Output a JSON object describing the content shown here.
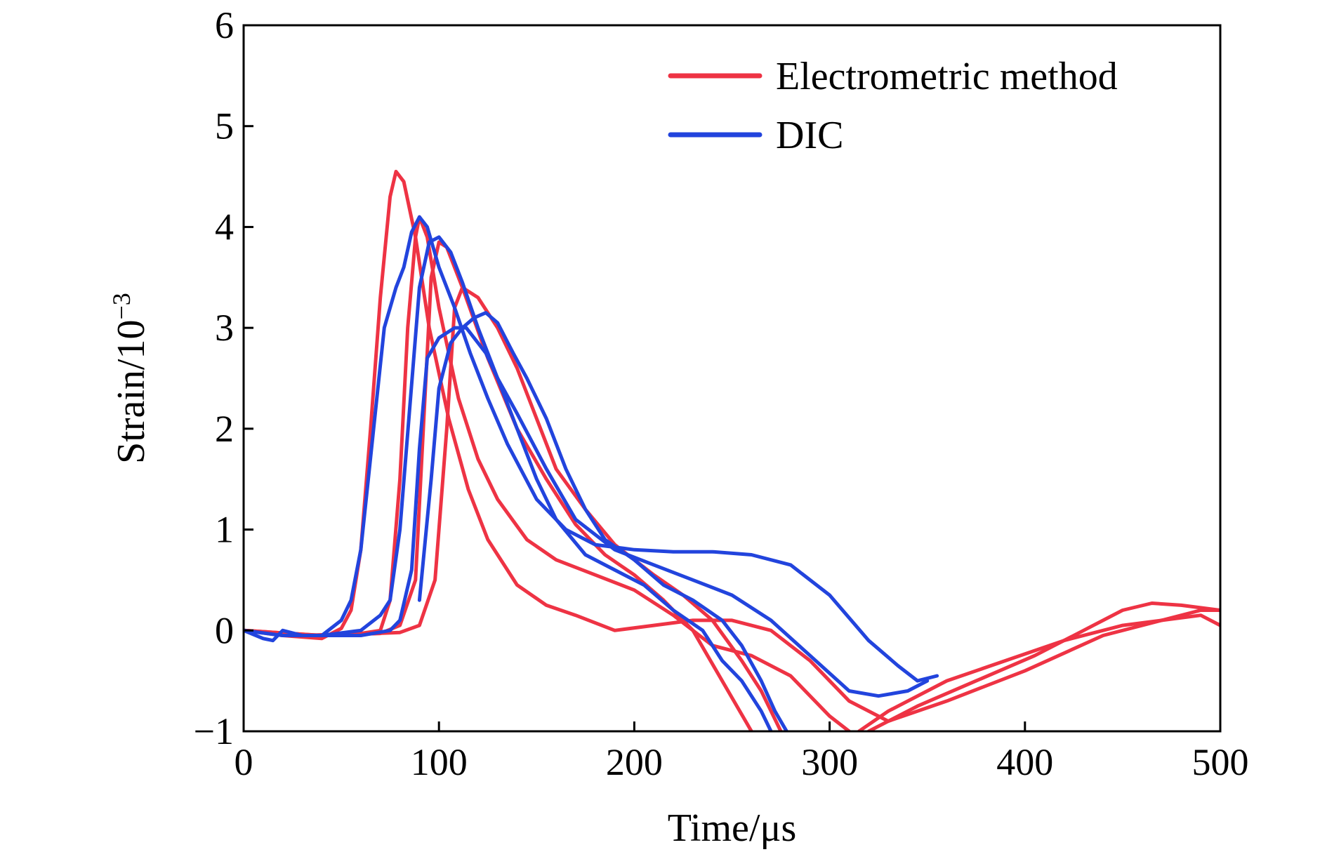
{
  "chart_data": {
    "type": "line",
    "xlabel": "Time/μs",
    "ylabel_base": "Strain/10",
    "ylabel_exp": "−3",
    "xlim": [
      0,
      500
    ],
    "ylim": [
      -1,
      6
    ],
    "xticks": [
      0,
      100,
      200,
      300,
      400,
      500
    ],
    "yticks": [
      -1,
      0,
      1,
      2,
      3,
      4,
      5,
      6
    ],
    "xtick_labels": [
      "0",
      "100",
      "200",
      "300",
      "400",
      "500"
    ],
    "ytick_labels": [
      "−1",
      "0",
      "1",
      "2",
      "3",
      "4",
      "5",
      "6"
    ],
    "grid": false,
    "legend_position": "top-right",
    "legend": [
      {
        "label": "Electrometric method",
        "color": "#ee3344"
      },
      {
        "label": "DIC",
        "color": "#2244dd"
      }
    ],
    "series": [
      {
        "group": "Electrometric method",
        "color": "#ee3344",
        "points": [
          [
            0,
            0
          ],
          [
            20,
            -0.05
          ],
          [
            40,
            -0.08
          ],
          [
            50,
            0.02
          ],
          [
            55,
            0.2
          ],
          [
            60,
            0.8
          ],
          [
            65,
            2.0
          ],
          [
            70,
            3.3
          ],
          [
            75,
            4.3
          ],
          [
            78,
            4.55
          ],
          [
            82,
            4.45
          ],
          [
            88,
            3.9
          ],
          [
            95,
            3.0
          ],
          [
            105,
            2.1
          ],
          [
            115,
            1.4
          ],
          [
            125,
            0.9
          ],
          [
            140,
            0.45
          ],
          [
            155,
            0.25
          ],
          [
            170,
            0.15
          ],
          [
            190,
            0.0
          ],
          [
            210,
            0.05
          ],
          [
            230,
            0.1
          ],
          [
            250,
            0.1
          ],
          [
            270,
            0.0
          ],
          [
            290,
            -0.3
          ],
          [
            310,
            -0.7
          ],
          [
            330,
            -0.9
          ],
          [
            360,
            -0.7
          ],
          [
            400,
            -0.4
          ],
          [
            440,
            -0.05
          ],
          [
            470,
            0.1
          ],
          [
            490,
            0.15
          ],
          [
            500,
            0.05
          ]
        ]
      },
      {
        "group": "Electrometric method",
        "color": "#ee3344",
        "points": [
          [
            0,
            0
          ],
          [
            30,
            -0.05
          ],
          [
            60,
            -0.03
          ],
          [
            70,
            0.0
          ],
          [
            75,
            0.3
          ],
          [
            80,
            1.5
          ],
          [
            84,
            3.0
          ],
          [
            88,
            3.9
          ],
          [
            90,
            4.1
          ],
          [
            94,
            3.9
          ],
          [
            100,
            3.2
          ],
          [
            110,
            2.3
          ],
          [
            120,
            1.7
          ],
          [
            130,
            1.3
          ],
          [
            145,
            0.9
          ],
          [
            160,
            0.7
          ],
          [
            180,
            0.55
          ],
          [
            200,
            0.4
          ],
          [
            220,
            0.15
          ],
          [
            240,
            -0.15
          ],
          [
            260,
            -0.25
          ],
          [
            280,
            -0.45
          ],
          [
            300,
            -0.85
          ],
          [
            310,
            -1.0
          ]
        ]
      },
      {
        "group": "Electrometric method",
        "color": "#ee3344",
        "points": [
          [
            0,
            0
          ],
          [
            40,
            -0.05
          ],
          [
            70,
            -0.03
          ],
          [
            80,
            0.05
          ],
          [
            88,
            0.5
          ],
          [
            92,
            2.0
          ],
          [
            96,
            3.5
          ],
          [
            100,
            3.85
          ],
          [
            104,
            3.8
          ],
          [
            112,
            3.4
          ],
          [
            125,
            2.7
          ],
          [
            140,
            2.0
          ],
          [
            155,
            1.5
          ],
          [
            170,
            1.05
          ],
          [
            185,
            0.75
          ],
          [
            200,
            0.55
          ],
          [
            215,
            0.3
          ],
          [
            230,
            0.0
          ],
          [
            245,
            -0.5
          ],
          [
            260,
            -1.0
          ]
        ]
      },
      {
        "group": "Electrometric method",
        "color": "#ee3344",
        "points": [
          [
            0,
            0
          ],
          [
            40,
            -0.05
          ],
          [
            80,
            -0.02
          ],
          [
            90,
            0.05
          ],
          [
            98,
            0.5
          ],
          [
            104,
            2.0
          ],
          [
            108,
            3.2
          ],
          [
            112,
            3.4
          ],
          [
            120,
            3.3
          ],
          [
            130,
            3.0
          ],
          [
            140,
            2.6
          ],
          [
            150,
            2.1
          ],
          [
            160,
            1.6
          ],
          [
            175,
            1.2
          ],
          [
            190,
            0.85
          ],
          [
            210,
            0.55
          ],
          [
            225,
            0.35
          ],
          [
            240,
            0.1
          ],
          [
            255,
            -0.3
          ],
          [
            265,
            -0.6
          ],
          [
            275,
            -1.0
          ]
        ]
      },
      {
        "group": "Electrometric method",
        "color": "#ee3344",
        "points": [
          [
            315,
            -1.0
          ],
          [
            330,
            -0.8
          ],
          [
            360,
            -0.5
          ],
          [
            390,
            -0.3
          ],
          [
            420,
            -0.1
          ],
          [
            450,
            0.05
          ],
          [
            470,
            0.1
          ],
          [
            490,
            0.2
          ],
          [
            500,
            0.2
          ]
        ]
      },
      {
        "group": "Electrometric method",
        "color": "#ee3344",
        "points": [
          [
            320,
            -1.0
          ],
          [
            345,
            -0.75
          ],
          [
            375,
            -0.5
          ],
          [
            405,
            -0.25
          ],
          [
            430,
            0.0
          ],
          [
            450,
            0.2
          ],
          [
            465,
            0.27
          ],
          [
            480,
            0.25
          ],
          [
            500,
            0.2
          ]
        ]
      },
      {
        "group": "DIC",
        "color": "#2244dd",
        "points": [
          [
            0,
            0
          ],
          [
            10,
            -0.08
          ],
          [
            15,
            -0.1
          ],
          [
            20,
            0.0
          ],
          [
            30,
            -0.05
          ],
          [
            40,
            -0.05
          ],
          [
            50,
            0.1
          ],
          [
            55,
            0.3
          ],
          [
            60,
            0.8
          ],
          [
            66,
            1.9
          ],
          [
            72,
            3.0
          ],
          [
            78,
            3.4
          ],
          [
            82,
            3.6
          ],
          [
            86,
            3.95
          ],
          [
            90,
            4.1
          ],
          [
            94,
            4.0
          ],
          [
            100,
            3.6
          ],
          [
            108,
            3.2
          ],
          [
            116,
            2.75
          ],
          [
            125,
            2.3
          ],
          [
            135,
            1.85
          ],
          [
            150,
            1.3
          ],
          [
            165,
            1.0
          ],
          [
            180,
            0.85
          ],
          [
            200,
            0.8
          ],
          [
            220,
            0.78
          ],
          [
            240,
            0.78
          ],
          [
            260,
            0.75
          ],
          [
            280,
            0.65
          ],
          [
            300,
            0.35
          ],
          [
            320,
            -0.1
          ],
          [
            335,
            -0.35
          ],
          [
            345,
            -0.5
          ],
          [
            355,
            -0.45
          ]
        ]
      },
      {
        "group": "DIC",
        "color": "#2244dd",
        "points": [
          [
            0,
            0
          ],
          [
            20,
            -0.05
          ],
          [
            40,
            -0.05
          ],
          [
            60,
            0.0
          ],
          [
            70,
            0.15
          ],
          [
            75,
            0.3
          ],
          [
            80,
            1.0
          ],
          [
            85,
            2.2
          ],
          [
            90,
            3.4
          ],
          [
            95,
            3.85
          ],
          [
            100,
            3.9
          ],
          [
            106,
            3.75
          ],
          [
            112,
            3.45
          ],
          [
            120,
            3.0
          ],
          [
            130,
            2.5
          ],
          [
            140,
            2.15
          ],
          [
            155,
            1.6
          ],
          [
            170,
            1.1
          ],
          [
            190,
            0.8
          ],
          [
            210,
            0.65
          ],
          [
            230,
            0.5
          ],
          [
            250,
            0.35
          ],
          [
            270,
            0.1
          ],
          [
            290,
            -0.25
          ],
          [
            310,
            -0.6
          ],
          [
            325,
            -0.65
          ],
          [
            340,
            -0.6
          ],
          [
            350,
            -0.5
          ]
        ]
      },
      {
        "group": "DIC",
        "color": "#2244dd",
        "points": [
          [
            30,
            -0.05
          ],
          [
            60,
            -0.05
          ],
          [
            75,
            0.0
          ],
          [
            80,
            0.1
          ],
          [
            86,
            0.6
          ],
          [
            90,
            1.8
          ],
          [
            94,
            2.7
          ],
          [
            100,
            2.9
          ],
          [
            108,
            3.0
          ],
          [
            114,
            3.0
          ],
          [
            118,
            2.9
          ],
          [
            124,
            2.75
          ],
          [
            130,
            2.5
          ],
          [
            140,
            2.0
          ],
          [
            150,
            1.5
          ],
          [
            160,
            1.1
          ],
          [
            175,
            0.75
          ],
          [
            190,
            0.6
          ],
          [
            205,
            0.45
          ],
          [
            220,
            0.2
          ],
          [
            235,
            0.0
          ],
          [
            245,
            -0.3
          ],
          [
            255,
            -0.5
          ],
          [
            265,
            -0.8
          ],
          [
            270,
            -1.0
          ]
        ]
      },
      {
        "group": "DIC",
        "color": "#2244dd",
        "points": [
          [
            90,
            0.3
          ],
          [
            96,
            1.5
          ],
          [
            100,
            2.4
          ],
          [
            106,
            2.85
          ],
          [
            112,
            3.0
          ],
          [
            118,
            3.1
          ],
          [
            124,
            3.15
          ],
          [
            130,
            3.05
          ],
          [
            138,
            2.75
          ],
          [
            145,
            2.5
          ],
          [
            155,
            2.1
          ],
          [
            165,
            1.6
          ],
          [
            175,
            1.2
          ],
          [
            185,
            0.9
          ],
          [
            200,
            0.7
          ],
          [
            215,
            0.45
          ],
          [
            230,
            0.3
          ],
          [
            245,
            0.1
          ],
          [
            255,
            -0.15
          ],
          [
            265,
            -0.5
          ],
          [
            272,
            -0.8
          ],
          [
            278,
            -1.0
          ]
        ]
      }
    ]
  }
}
